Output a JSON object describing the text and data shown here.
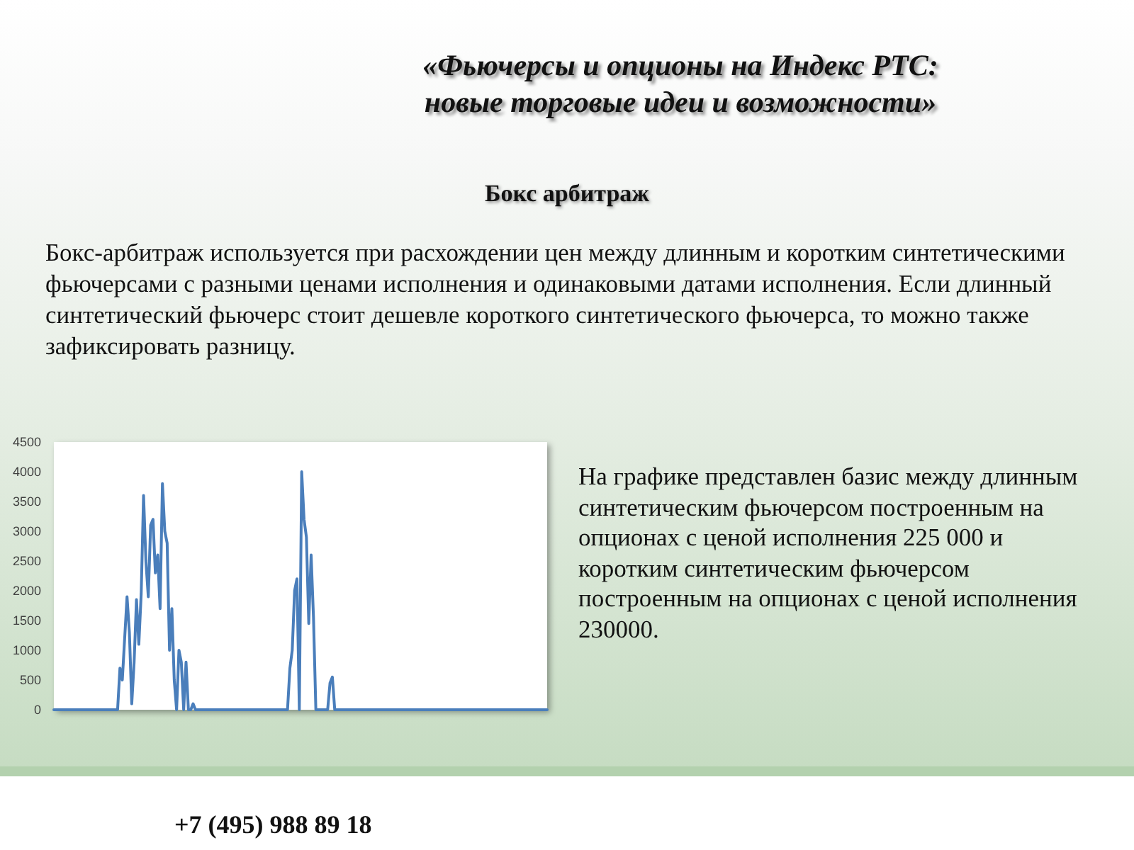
{
  "chart_data": {
    "type": "line",
    "title": "«Фьючерсы и опционы на Индекс РТС: новые торговые идеи и возможности»",
    "subtitle": "Бокс арбитраж",
    "annotations": [
      "Бокс-арбитраж используется при расхождении цен между длинным и коротким синтетическими фьючерсами с разными ценами исполнения и одинаковыми датами исполнения. Если длинный синтетический фьючерс стоит дешевле короткого синтетического фьючерса, то можно также зафиксировать разницу.",
      "На графике представлен базис между длинным синтетическим фьючерсом построенным на опционах с ценой исполнения 225 000 и коротким синтетическим фьючерсом построенным на опционах с ценой исполнения 230000.",
      "+7 (495) 988 89 18"
    ],
    "categories": [
      null,
      null,
      null,
      null,
      null,
      null,
      null,
      null,
      null,
      null,
      null,
      null,
      null,
      null,
      null,
      null,
      null,
      null,
      null,
      null,
      null,
      null,
      null,
      null,
      null,
      null,
      null,
      null,
      null,
      null,
      null,
      null,
      null,
      null,
      null,
      null,
      null,
      null,
      null,
      null,
      null,
      null,
      null,
      null,
      null,
      null,
      null,
      null,
      null,
      null,
      null,
      null,
      null,
      null,
      null,
      null,
      null,
      null,
      null,
      null,
      null,
      null,
      null,
      null,
      null,
      null,
      null,
      null,
      null,
      null,
      null,
      null,
      null,
      null,
      null,
      null,
      null,
      null,
      null,
      null,
      null,
      null,
      null,
      null,
      null,
      null,
      null,
      null,
      null,
      null,
      null,
      null,
      null,
      null,
      null,
      null,
      null,
      null,
      null,
      null,
      null,
      null,
      null,
      null,
      null,
      null,
      null,
      null,
      null,
      null,
      null,
      null,
      null,
      null,
      null,
      null,
      null,
      null,
      null,
      null,
      null,
      null,
      null,
      null,
      null,
      null,
      null,
      null,
      null,
      null,
      null,
      null,
      null,
      null,
      null,
      null,
      null,
      null,
      null,
      null,
      null,
      null,
      null,
      null,
      null,
      null,
      null,
      null,
      null,
      null,
      null,
      null,
      null,
      null,
      null,
      null,
      null,
      null,
      null,
      null,
      null,
      null,
      null,
      null,
      null,
      null,
      null,
      null,
      null,
      null,
      null,
      null,
      null,
      null,
      null,
      null,
      null,
      null,
      null,
      null,
      null,
      null,
      null,
      null,
      null,
      null,
      null,
      null,
      null,
      null,
      null,
      null,
      null,
      null,
      null,
      null,
      null,
      null,
      null,
      null,
      null,
      null,
      null,
      null,
      null,
      null,
      null,
      null,
      null,
      null
    ],
    "values": [
      0,
      0,
      0,
      0,
      0,
      0,
      0,
      0,
      0,
      0,
      0,
      0,
      0,
      0,
      0,
      0,
      0,
      0,
      0,
      0,
      0,
      0,
      0,
      0,
      0,
      0,
      0,
      0,
      700,
      500,
      1200,
      1900,
      1300,
      100,
      800,
      1850,
      1100,
      1950,
      3600,
      2500,
      1900,
      3100,
      3200,
      2300,
      2600,
      1700,
      3800,
      3000,
      2800,
      1000,
      1700,
      500,
      0,
      1000,
      800,
      0,
      800,
      0,
      0,
      100,
      0,
      0,
      0,
      0,
      0,
      0,
      0,
      0,
      0,
      0,
      0,
      0,
      0,
      0,
      0,
      0,
      0,
      0,
      0,
      0,
      0,
      0,
      0,
      0,
      0,
      0,
      0,
      0,
      0,
      0,
      0,
      0,
      0,
      0,
      0,
      0,
      0,
      0,
      0,
      0,
      700,
      1000,
      2000,
      2200,
      0,
      4000,
      3200,
      2900,
      1450,
      2600,
      1550,
      0,
      0,
      0,
      0,
      0,
      0,
      450,
      550,
      0,
      0,
      0,
      0,
      0,
      0,
      0,
      0,
      0,
      0,
      0,
      0,
      0,
      0,
      0,
      0,
      0,
      0,
      0,
      0,
      0,
      0,
      0,
      0,
      0,
      0,
      0,
      0,
      0,
      0,
      0,
      0,
      0,
      0,
      0,
      0,
      0,
      0,
      0,
      0,
      0,
      0,
      0,
      0,
      0,
      0,
      0,
      0,
      0,
      0,
      0,
      0,
      0,
      0,
      0,
      0,
      0,
      0,
      0,
      0,
      0,
      0,
      0,
      0,
      0,
      0,
      0,
      0,
      0,
      0,
      0,
      0,
      0,
      0,
      0,
      0,
      0,
      0,
      0,
      0,
      0,
      0,
      0,
      0,
      0,
      0,
      0,
      0,
      0,
      0,
      0
    ],
    "color": "#4a7ebb",
    "ylim": [
      0,
      4500
    ],
    "yticks": [
      0,
      500,
      1000,
      1500,
      2000,
      2500,
      3000,
      3500,
      4000,
      4500
    ],
    "grid": false,
    "marker": "none",
    "line_style": "solid"
  }
}
